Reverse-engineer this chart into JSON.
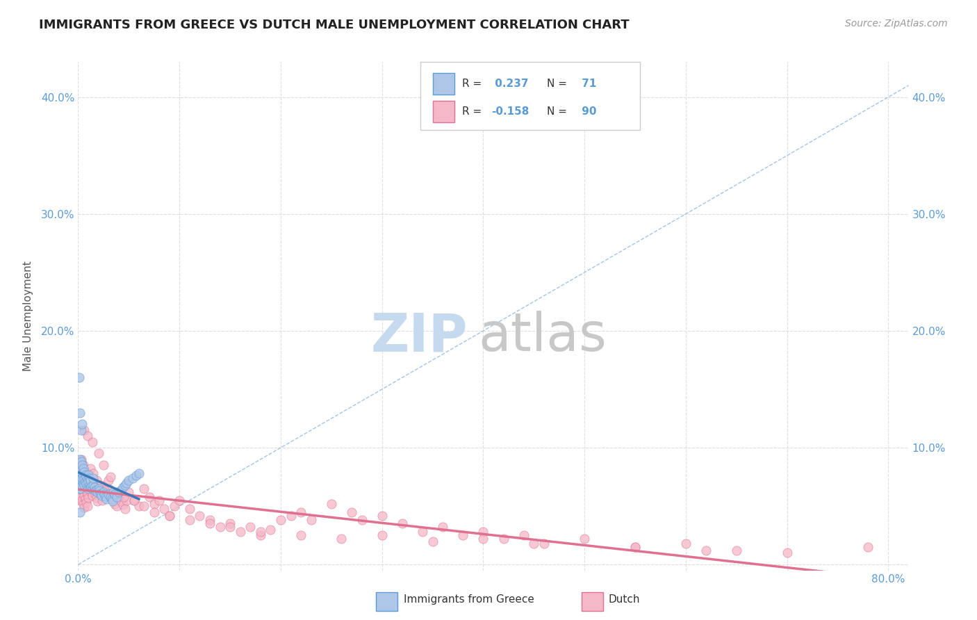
{
  "title": "IMMIGRANTS FROM GREECE VS DUTCH MALE UNEMPLOYMENT CORRELATION CHART",
  "source_text": "Source: ZipAtlas.com",
  "ylabel": "Male Unemployment",
  "xlim": [
    0.0,
    0.82
  ],
  "ylim": [
    -0.005,
    0.43
  ],
  "xticks": [
    0.0,
    0.1,
    0.2,
    0.3,
    0.4,
    0.5,
    0.6,
    0.7,
    0.8
  ],
  "yticks": [
    0.0,
    0.1,
    0.2,
    0.3,
    0.4
  ],
  "r_blue": 0.237,
  "n_blue": 71,
  "r_pink": -0.158,
  "n_pink": 90,
  "blue_fill": "#aec6e8",
  "blue_edge": "#5b9bd5",
  "pink_fill": "#f4b8c8",
  "pink_edge": "#e07090",
  "diag_color": "#7aacdc",
  "pink_line_color": "#e07090",
  "blue_line_color": "#3a78b5",
  "watermark_zip_color": "#c5d9ef",
  "watermark_atlas_color": "#c8c8c8",
  "bg_color": "#ffffff",
  "grid_color": "#dddddd",
  "tick_color": "#5b9bd5",
  "legend_blue_label": "Immigrants from Greece",
  "legend_pink_label": "Dutch",
  "blue_x": [
    0.001,
    0.001,
    0.001,
    0.002,
    0.002,
    0.002,
    0.002,
    0.003,
    0.003,
    0.003,
    0.003,
    0.004,
    0.004,
    0.004,
    0.004,
    0.005,
    0.005,
    0.005,
    0.006,
    0.006,
    0.006,
    0.007,
    0.007,
    0.008,
    0.008,
    0.009,
    0.009,
    0.01,
    0.01,
    0.01,
    0.011,
    0.011,
    0.012,
    0.012,
    0.013,
    0.014,
    0.015,
    0.015,
    0.016,
    0.017,
    0.018,
    0.019,
    0.02,
    0.021,
    0.022,
    0.023,
    0.025,
    0.026,
    0.027,
    0.028,
    0.03,
    0.032,
    0.033,
    0.034,
    0.035,
    0.036,
    0.038,
    0.04,
    0.042,
    0.044,
    0.046,
    0.048,
    0.05,
    0.054,
    0.057,
    0.06,
    0.001,
    0.002,
    0.003,
    0.004,
    0.002
  ],
  "blue_y": [
    0.075,
    0.085,
    0.065,
    0.08,
    0.09,
    0.07,
    0.065,
    0.082,
    0.076,
    0.088,
    0.072,
    0.078,
    0.085,
    0.068,
    0.074,
    0.076,
    0.082,
    0.07,
    0.073,
    0.079,
    0.068,
    0.071,
    0.077,
    0.069,
    0.075,
    0.067,
    0.073,
    0.065,
    0.071,
    0.077,
    0.068,
    0.074,
    0.066,
    0.072,
    0.067,
    0.065,
    0.068,
    0.074,
    0.066,
    0.063,
    0.064,
    0.062,
    0.065,
    0.063,
    0.061,
    0.059,
    0.062,
    0.06,
    0.058,
    0.056,
    0.06,
    0.058,
    0.056,
    0.054,
    0.062,
    0.06,
    0.058,
    0.062,
    0.064,
    0.066,
    0.068,
    0.07,
    0.072,
    0.074,
    0.076,
    0.078,
    0.16,
    0.13,
    0.115,
    0.12,
    0.045
  ],
  "pink_x": [
    0.001,
    0.001,
    0.002,
    0.002,
    0.002,
    0.003,
    0.003,
    0.003,
    0.004,
    0.004,
    0.004,
    0.005,
    0.005,
    0.005,
    0.006,
    0.006,
    0.006,
    0.007,
    0.007,
    0.008,
    0.008,
    0.009,
    0.009,
    0.01,
    0.01,
    0.011,
    0.012,
    0.013,
    0.014,
    0.015,
    0.016,
    0.017,
    0.018,
    0.019,
    0.02,
    0.022,
    0.024,
    0.025,
    0.027,
    0.028,
    0.03,
    0.032,
    0.034,
    0.036,
    0.038,
    0.04,
    0.042,
    0.044,
    0.046,
    0.048,
    0.05,
    0.055,
    0.06,
    0.065,
    0.07,
    0.075,
    0.08,
    0.085,
    0.09,
    0.095,
    0.1,
    0.11,
    0.12,
    0.13,
    0.14,
    0.15,
    0.16,
    0.17,
    0.18,
    0.19,
    0.2,
    0.21,
    0.22,
    0.23,
    0.25,
    0.27,
    0.28,
    0.3,
    0.32,
    0.34,
    0.36,
    0.38,
    0.4,
    0.42,
    0.44,
    0.46,
    0.5,
    0.55,
    0.6,
    0.65
  ],
  "pink_y": [
    0.075,
    0.065,
    0.08,
    0.07,
    0.055,
    0.078,
    0.068,
    0.058,
    0.075,
    0.065,
    0.055,
    0.072,
    0.062,
    0.052,
    0.069,
    0.059,
    0.049,
    0.066,
    0.056,
    0.063,
    0.053,
    0.06,
    0.05,
    0.072,
    0.057,
    0.068,
    0.065,
    0.062,
    0.059,
    0.066,
    0.063,
    0.06,
    0.057,
    0.054,
    0.065,
    0.06,
    0.055,
    0.067,
    0.062,
    0.058,
    0.065,
    0.06,
    0.055,
    0.052,
    0.05,
    0.057,
    0.054,
    0.051,
    0.048,
    0.055,
    0.062,
    0.055,
    0.05,
    0.065,
    0.058,
    0.052,
    0.055,
    0.048,
    0.042,
    0.05,
    0.055,
    0.048,
    0.042,
    0.038,
    0.032,
    0.035,
    0.028,
    0.032,
    0.025,
    0.03,
    0.038,
    0.042,
    0.045,
    0.038,
    0.052,
    0.045,
    0.038,
    0.042,
    0.035,
    0.028,
    0.032,
    0.025,
    0.028,
    0.022,
    0.025,
    0.018,
    0.022,
    0.015,
    0.018,
    0.012
  ],
  "pink_x2": [
    0.003,
    0.005,
    0.007,
    0.009,
    0.012,
    0.015,
    0.018,
    0.022,
    0.026,
    0.03,
    0.038,
    0.045,
    0.055,
    0.065,
    0.075,
    0.09,
    0.11,
    0.13,
    0.15,
    0.18,
    0.22,
    0.26,
    0.3,
    0.35,
    0.4,
    0.45,
    0.55,
    0.62,
    0.7,
    0.78,
    0.006,
    0.009,
    0.014,
    0.02,
    0.025,
    0.032
  ],
  "pink_y2": [
    0.09,
    0.085,
    0.08,
    0.075,
    0.082,
    0.078,
    0.072,
    0.068,
    0.064,
    0.072,
    0.062,
    0.058,
    0.055,
    0.05,
    0.045,
    0.042,
    0.038,
    0.035,
    0.032,
    0.028,
    0.025,
    0.022,
    0.025,
    0.02,
    0.022,
    0.018,
    0.015,
    0.012,
    0.01,
    0.015,
    0.115,
    0.11,
    0.105,
    0.095,
    0.085,
    0.075
  ]
}
